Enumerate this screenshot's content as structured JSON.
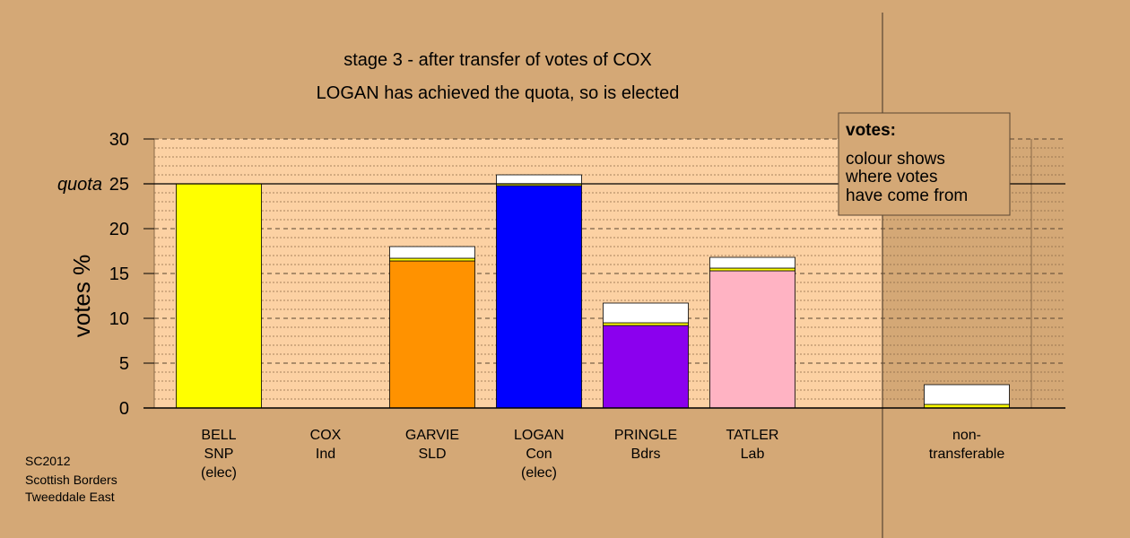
{
  "chart_data": {
    "type": "bar",
    "title": "stage 3 - after transfer of votes of COX",
    "subtitle": "LOGAN has achieved the quota, so is elected",
    "ylabel": "votes %",
    "ylim": [
      0,
      30
    ],
    "yticks": [
      0,
      5,
      10,
      15,
      20,
      25,
      30
    ],
    "quota": {
      "label": "quota",
      "value": 25
    },
    "grid": true,
    "categories": [
      {
        "name": "BELL",
        "party": "SNP",
        "note": "(elec)"
      },
      {
        "name": "COX",
        "party": "Ind",
        "note": ""
      },
      {
        "name": "GARVIE",
        "party": "SLD",
        "note": ""
      },
      {
        "name": "LOGAN",
        "party": "Con",
        "note": "(elec)"
      },
      {
        "name": "PRINGLE",
        "party": "Bdrs",
        "note": ""
      },
      {
        "name": "TATLER",
        "party": "Lab",
        "note": ""
      },
      {
        "name": "non-",
        "party": "transferable",
        "note": ""
      }
    ],
    "bars": [
      {
        "segments": [
          {
            "value": 25.0,
            "color": "#ffff00"
          }
        ]
      },
      {
        "segments": []
      },
      {
        "segments": [
          {
            "value": 16.4,
            "color": "#ff9200"
          },
          {
            "value": 0.3,
            "color": "#ffff00"
          },
          {
            "value": 1.3,
            "color": "#ffffff"
          }
        ]
      },
      {
        "segments": [
          {
            "value": 24.8,
            "color": "#0000ff"
          },
          {
            "value": 0.2,
            "color": "#ffff00"
          },
          {
            "value": 1.0,
            "color": "#ffffff"
          }
        ]
      },
      {
        "segments": [
          {
            "value": 9.2,
            "color": "#8b00ee"
          },
          {
            "value": 0.3,
            "color": "#ffff00"
          },
          {
            "value": 2.2,
            "color": "#ffffff"
          }
        ]
      },
      {
        "segments": [
          {
            "value": 15.3,
            "color": "#ffb3c3"
          },
          {
            "value": 0.3,
            "color": "#ffff00"
          },
          {
            "value": 1.2,
            "color": "#ffffff"
          }
        ]
      },
      {
        "segments": [
          {
            "value": 0.4,
            "color": "#ffff00"
          },
          {
            "value": 2.2,
            "color": "#ffffff"
          }
        ]
      }
    ]
  },
  "legend": {
    "title": "votes:",
    "lines": [
      "colour shows",
      "where votes",
      "have come from"
    ]
  },
  "source": [
    "SC2012",
    "Scottish Borders",
    "Tweeddale East"
  ],
  "colors": {
    "background": "#d4a876",
    "plot_area": "#fcd1a3",
    "right_panel": "#d4a876",
    "legend_box": "#d4a876"
  }
}
